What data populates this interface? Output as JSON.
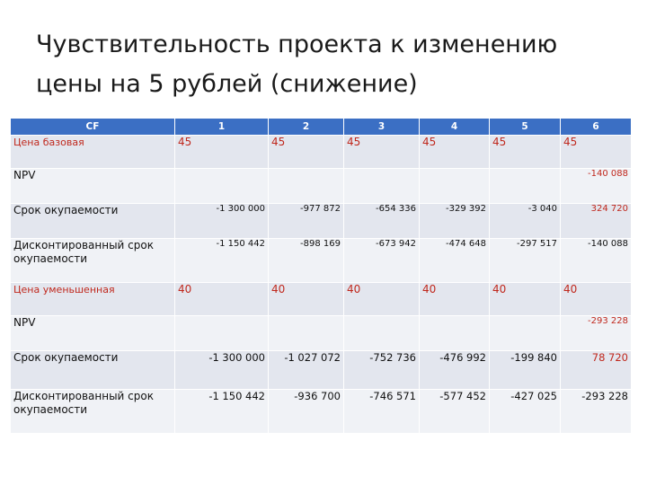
{
  "slide": {
    "title": "Чувствительность проекта к изменению цены на 5 рублей (снижение)"
  },
  "table": {
    "headers": [
      "CF",
      "1",
      "2",
      "3",
      "4",
      "5",
      "6"
    ],
    "rows": [
      {
        "label": "Цена базовая",
        "label_color": "red",
        "kind": "price",
        "cells": [
          "45",
          "45",
          "45",
          "45",
          "45",
          "45"
        ]
      },
      {
        "label": "NPV",
        "kind": "value",
        "cells": [
          "",
          "",
          "",
          "",
          "",
          "-140 088"
        ]
      },
      {
        "label": "Срок окупаемости",
        "kind": "value",
        "cells": [
          "-1 300 000",
          "-977 872",
          "-654 336",
          "-329 392",
          "-3 040",
          "324 720"
        ]
      },
      {
        "label": "Дисконтированный срок окупаемости",
        "kind": "value",
        "cells": [
          "-1 150 442",
          "-898 169",
          "-673 942",
          "-474 648",
          "-297 517",
          "-140 088"
        ]
      },
      {
        "label": "Цена уменьшенная",
        "label_color": "red",
        "kind": "price",
        "cells": [
          "40",
          "40",
          "40",
          "40",
          "40",
          "40"
        ]
      },
      {
        "label": "NPV",
        "kind": "value",
        "cells": [
          "",
          "",
          "",
          "",
          "",
          "-293 228"
        ]
      },
      {
        "label": "Срок окупаемости",
        "kind": "value",
        "cells": [
          "-1 300 000",
          "-1 027 072",
          "-752 736",
          "-476 992",
          "-199 840",
          "78 720"
        ]
      },
      {
        "label": "Дисконтированный срок окупаемости",
        "kind": "value",
        "cells": [
          "-1 150 442",
          "-936 700",
          "-746 571",
          "-577 452",
          "-427 025",
          "-293 228"
        ]
      }
    ]
  },
  "colors": {
    "header_bg": "#3b6fc4",
    "accent_red": "#c0281d",
    "row_odd": "#e3e6ee",
    "row_even": "#f0f2f6"
  }
}
